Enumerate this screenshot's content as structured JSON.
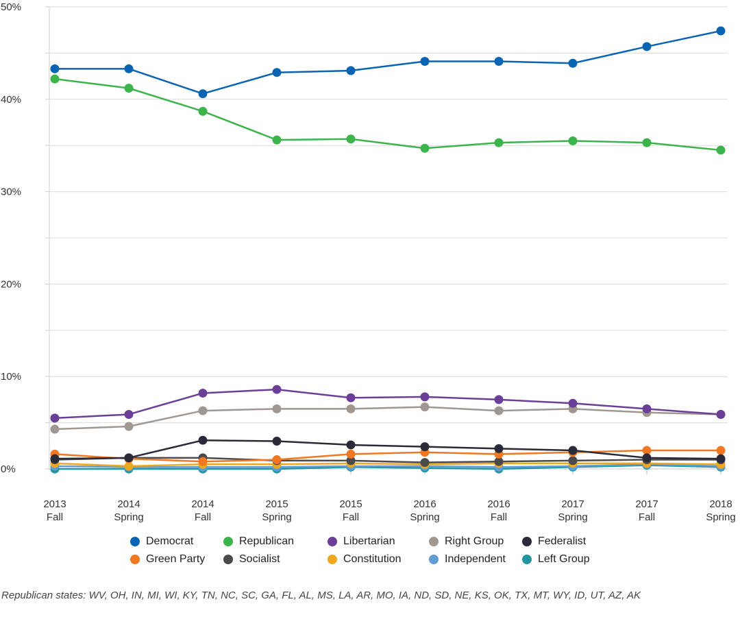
{
  "chart_data": {
    "type": "line",
    "title": "",
    "xlabel": "",
    "ylabel": "",
    "ylim": [
      0,
      50
    ],
    "y_ticks": [
      "0%",
      "10%",
      "20%",
      "30%",
      "40%",
      "50%"
    ],
    "y_tick_values": [
      0,
      10,
      20,
      30,
      40,
      50
    ],
    "categories": [
      {
        "line1": "2013",
        "line2": "Fall"
      },
      {
        "line1": "2014",
        "line2": "Spring"
      },
      {
        "line1": "2014",
        "line2": "Fall"
      },
      {
        "line1": "2015",
        "line2": "Spring"
      },
      {
        "line1": "2015",
        "line2": "Fall"
      },
      {
        "line1": "2016",
        "line2": "Spring"
      },
      {
        "line1": "2016",
        "line2": "Fall"
      },
      {
        "line1": "2017",
        "line2": "Spring"
      },
      {
        "line1": "2017",
        "line2": "Fall"
      },
      {
        "line1": "2018",
        "line2": "Spring"
      }
    ],
    "series": [
      {
        "name": "Democrat",
        "color": "#0a64b4",
        "values": [
          43.3,
          43.3,
          40.6,
          42.9,
          43.1,
          44.1,
          44.1,
          43.9,
          45.7,
          47.4
        ]
      },
      {
        "name": "Republican",
        "color": "#3cb44b",
        "values": [
          42.2,
          41.2,
          38.7,
          35.6,
          35.7,
          34.7,
          35.3,
          35.5,
          35.3,
          34.5
        ]
      },
      {
        "name": "Libertarian",
        "color": "#6b3f98",
        "values": [
          5.5,
          5.9,
          8.2,
          8.6,
          7.7,
          7.8,
          7.5,
          7.1,
          6.5,
          5.9
        ]
      },
      {
        "name": "Right Group",
        "color": "#a09890",
        "values": [
          4.3,
          4.6,
          6.3,
          6.5,
          6.5,
          6.7,
          6.3,
          6.5,
          6.1,
          5.9
        ]
      },
      {
        "name": "Federalist",
        "color": "#2a2a38",
        "values": [
          1.1,
          1.2,
          3.1,
          3.0,
          2.6,
          2.4,
          2.2,
          2.0,
          1.2,
          1.1
        ]
      },
      {
        "name": "Green Party",
        "color": "#f07823",
        "values": [
          1.6,
          1.1,
          0.8,
          1.0,
          1.6,
          1.8,
          1.6,
          1.8,
          2.0,
          2.0
        ]
      },
      {
        "name": "Socialist",
        "color": "#4a4a4a",
        "values": [
          1.0,
          1.2,
          1.2,
          0.9,
          0.9,
          0.7,
          0.8,
          0.9,
          1.0,
          1.0
        ]
      },
      {
        "name": "Constitution",
        "color": "#eea820",
        "values": [
          0.6,
          0.3,
          0.5,
          0.5,
          0.6,
          0.5,
          0.6,
          0.6,
          0.6,
          0.5
        ]
      },
      {
        "name": "Independent",
        "color": "#5f9dd4",
        "values": [
          0.3,
          0.2,
          0.2,
          0.2,
          0.3,
          0.3,
          0.2,
          0.3,
          0.5,
          0.3
        ]
      },
      {
        "name": "Left Group",
        "color": "#2196a0",
        "values": [
          0.0,
          0.0,
          0.0,
          0.0,
          0.2,
          0.1,
          0.0,
          0.2,
          0.4,
          0.2
        ]
      }
    ],
    "legend_position": "bottom",
    "grid": true
  },
  "footnote": "Republican states: WV, OH, IN, MI, WI, KY, TN, NC, SC, GA, FL, AL, MS, LA, AR, MO, IA, ND, SD, NE, KS, OK, TX, MT, WY, ID, UT, AZ, AK"
}
